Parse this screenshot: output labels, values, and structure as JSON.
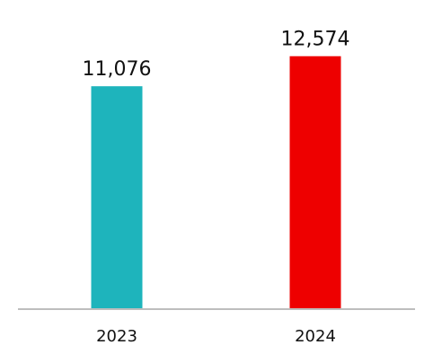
{
  "chart_data": {
    "type": "bar",
    "categories": [
      "2023",
      "2024"
    ],
    "values": [
      11076,
      12574
    ],
    "data_labels": [
      "11,076",
      "12,574"
    ],
    "colors": [
      "#1eb4bc",
      "#ee0000"
    ],
    "axis_color": "#bdbdbd",
    "ylim": [
      0,
      13500
    ],
    "grid": false,
    "legend": "none"
  }
}
